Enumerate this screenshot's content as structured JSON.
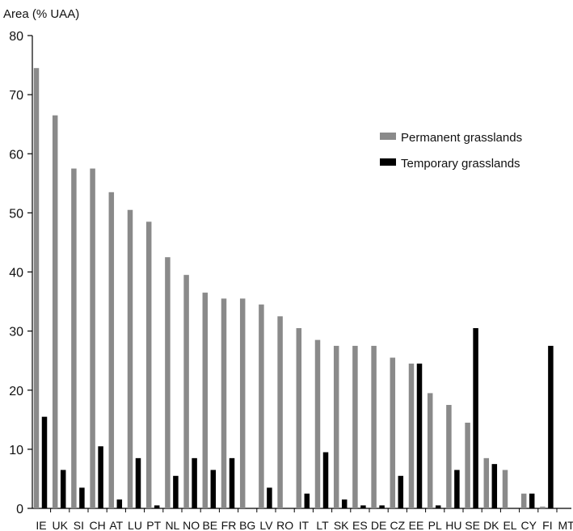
{
  "chart_data": {
    "type": "bar",
    "title": "",
    "ylabel": "Area (% UAA)",
    "xlabel": "",
    "ylim": [
      0,
      80
    ],
    "yticks": [
      0,
      10,
      20,
      30,
      40,
      50,
      60,
      70,
      80
    ],
    "grid": false,
    "legend_position": "top-right",
    "categories": [
      "IE",
      "UK",
      "SI",
      "CH",
      "AT",
      "LU",
      "PT",
      "NL",
      "NO",
      "BE",
      "FR",
      "BG",
      "LV",
      "RO",
      "IT",
      "LT",
      "SK",
      "ES",
      "DE",
      "CZ",
      "EE",
      "PL",
      "HU",
      "SE",
      "DK",
      "EL",
      "CY",
      "FI",
      "MT"
    ],
    "series": [
      {
        "name": "Permanent grasslands",
        "color": "#8a8a8a",
        "values": [
          74.5,
          66.5,
          57.5,
          57.5,
          53.5,
          50.5,
          48.5,
          42.5,
          39.5,
          36.5,
          35.5,
          35.5,
          34.5,
          32.5,
          30.5,
          28.5,
          27.5,
          27.5,
          27.5,
          25.5,
          24.5,
          19.5,
          17.5,
          14.5,
          8.5,
          6.5,
          2.5,
          0.3,
          0
        ]
      },
      {
        "name": "Temporary grasslands",
        "color": "#000000",
        "values": [
          15.5,
          6.5,
          3.5,
          10.5,
          1.5,
          8.5,
          0.5,
          5.5,
          8.5,
          6.5,
          8.5,
          0,
          3.5,
          0,
          2.5,
          9.5,
          1.5,
          0.5,
          0.5,
          5.5,
          24.5,
          0.5,
          6.5,
          30.5,
          7.5,
          0,
          2.5,
          27.5,
          0
        ]
      }
    ]
  }
}
